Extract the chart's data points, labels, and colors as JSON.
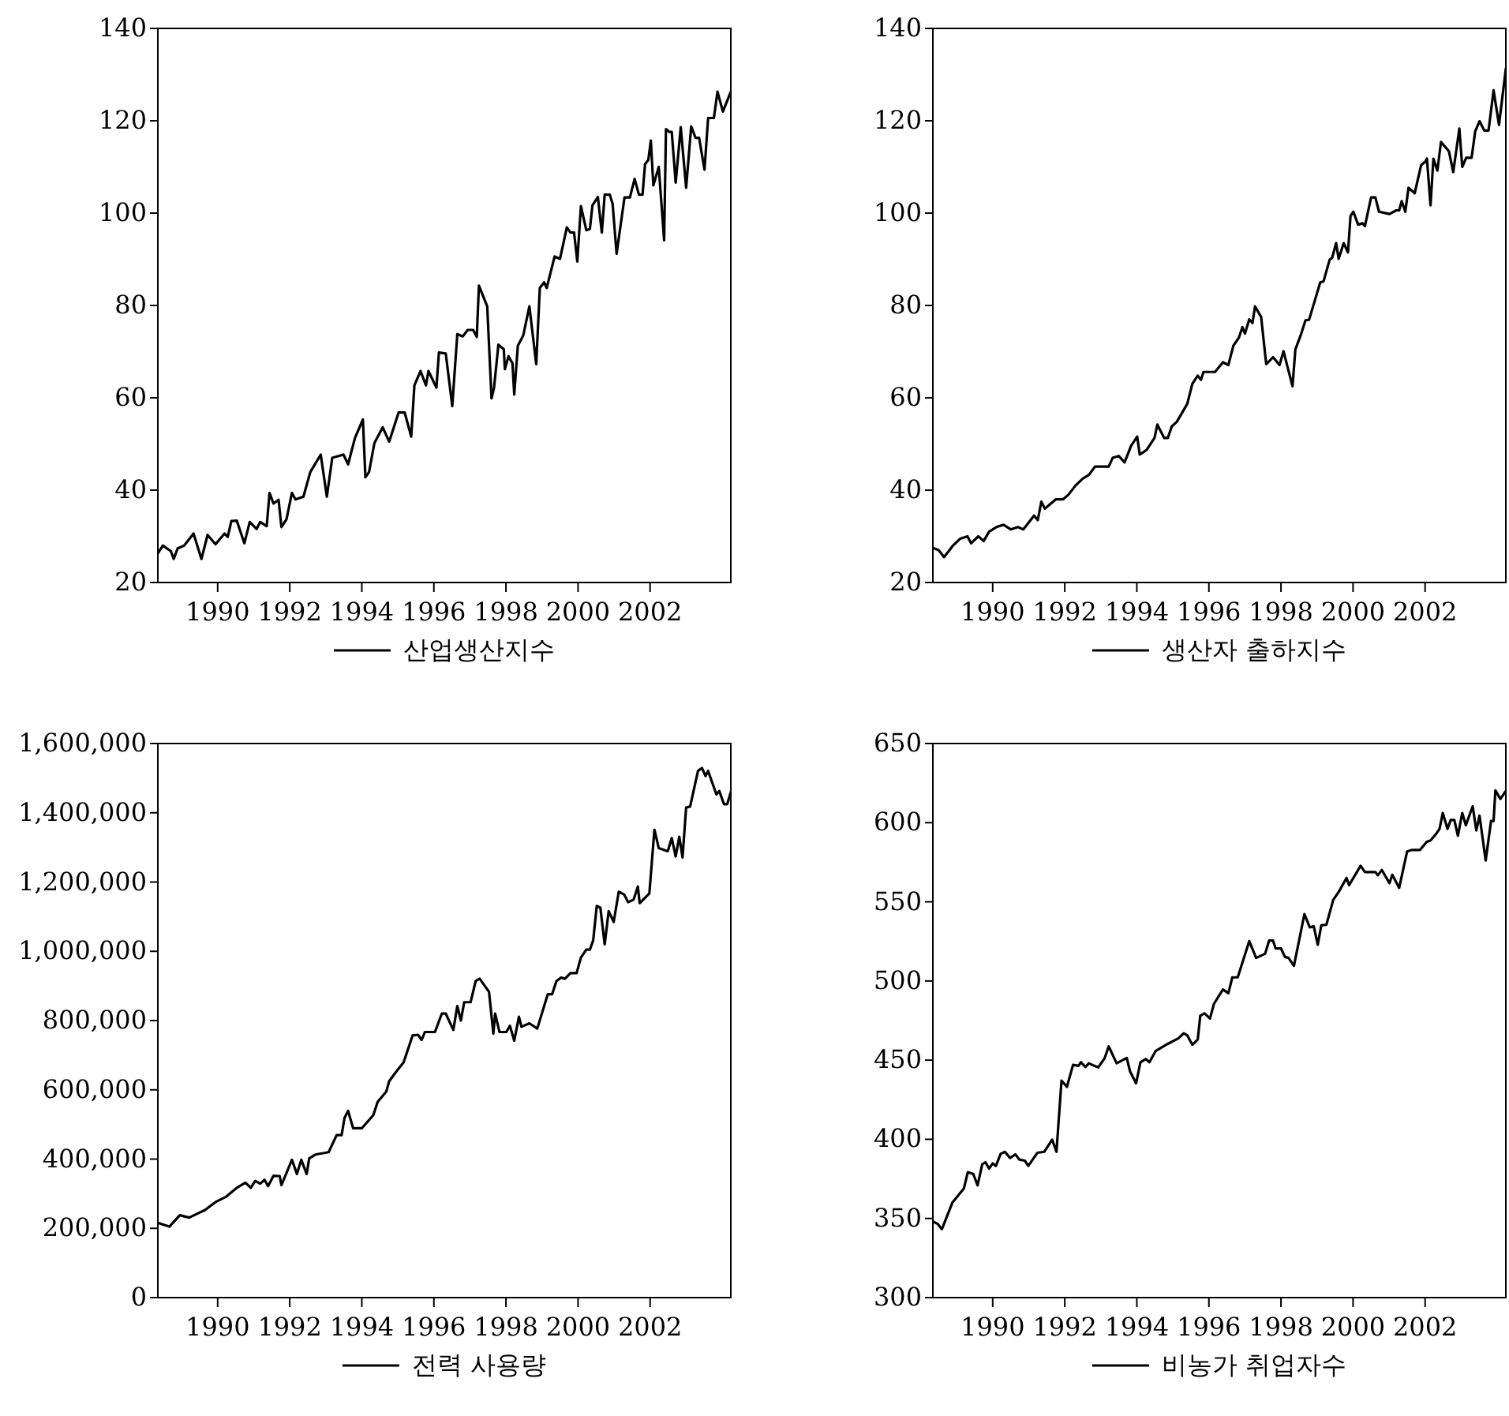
{
  "chart_data": [
    {
      "type": "line",
      "xlim": [
        1988.34,
        2004.24
      ],
      "xticks": [
        1990,
        1992,
        1994,
        1996,
        1998,
        2000,
        2002
      ],
      "ylim": [
        20,
        140
      ],
      "yticks": [
        20,
        40,
        60,
        80,
        100,
        120,
        140
      ],
      "legend": "bottom",
      "series": [
        {
          "name": "산업생산지수",
          "color": "#000000",
          "x": [
            1988.34,
            1988.48,
            1988.7,
            1988.78,
            1988.89,
            1989.07,
            1989.33,
            1989.55,
            1989.72,
            1989.94,
            1990.19,
            1990.28,
            1990.38,
            1990.53,
            1990.74,
            1990.89,
            1991.08,
            1991.18,
            1991.36,
            1991.44,
            1991.55,
            1991.69,
            1991.77,
            1991.91,
            1992.06,
            1992.16,
            1992.38,
            1992.57,
            1992.86,
            1993.03,
            1993.18,
            1993.49,
            1993.62,
            1993.81,
            1994.03,
            1994.1,
            1994.2,
            1994.35,
            1994.58,
            1994.76,
            1995.02,
            1995.19,
            1995.37,
            1995.46,
            1995.63,
            1995.78,
            1995.85,
            1996.07,
            1996.14,
            1996.33,
            1996.51,
            1996.65,
            1996.8,
            1996.94,
            1997.09,
            1997.19,
            1997.25,
            1997.48,
            1997.6,
            1997.67,
            1997.79,
            1997.94,
            1997.97,
            1998.07,
            1998.18,
            1998.23,
            1998.33,
            1998.48,
            1998.65,
            1998.84,
            1998.94,
            1999.06,
            1999.13,
            1999.35,
            1999.5,
            1999.69,
            1999.79,
            1999.89,
            1999.98,
            2000.08,
            2000.23,
            2000.33,
            2000.4,
            2000.55,
            2000.66,
            2000.74,
            2000.88,
            2000.96,
            2001.07,
            2001.29,
            2001.44,
            2001.57,
            2001.69,
            2001.79,
            2001.86,
            2001.95,
            2002.02,
            2002.09,
            2002.24,
            2002.39,
            2002.44,
            2002.53,
            2002.6,
            2002.71,
            2002.85,
            2003.0,
            2003.14,
            2003.26,
            2003.36,
            2003.51,
            2003.61,
            2003.77,
            2003.87,
            2004.02,
            2004.24
          ],
          "values": [
            26.3,
            28.0,
            26.8,
            25.1,
            27.4,
            28.0,
            30.6,
            25.1,
            30.3,
            28.3,
            30.6,
            29.9,
            33.3,
            33.4,
            28.5,
            33.1,
            31.6,
            33.1,
            32.2,
            39.4,
            37.1,
            37.9,
            32.0,
            33.7,
            39.4,
            38.0,
            38.6,
            43.9,
            47.7,
            38.6,
            47.0,
            47.7,
            45.6,
            51.3,
            55.3,
            42.8,
            43.9,
            50.2,
            53.6,
            50.5,
            56.8,
            56.8,
            51.6,
            62.7,
            65.8,
            62.7,
            65.8,
            62.2,
            69.8,
            69.6,
            58.2,
            73.8,
            73.3,
            74.7,
            74.7,
            73.2,
            84.3,
            79.8,
            59.9,
            62.2,
            71.5,
            70.5,
            66.2,
            69.0,
            67.5,
            60.7,
            71.3,
            73.5,
            79.8,
            67.3,
            83.8,
            85.0,
            83.8,
            90.6,
            90.1,
            96.9,
            95.8,
            95.8,
            89.5,
            101.5,
            96.3,
            96.6,
            101.7,
            103.5,
            95.8,
            104.0,
            104.0,
            102.0,
            91.2,
            103.4,
            103.4,
            107.4,
            104.0,
            104.0,
            110.6,
            111.5,
            115.7,
            106.0,
            110.0,
            94.1,
            118.2,
            117.6,
            117.6,
            106.6,
            118.6,
            105.5,
            118.8,
            116.3,
            116.3,
            109.4,
            120.6,
            120.6,
            126.3,
            122.0,
            126.3
          ]
        }
      ]
    },
    {
      "type": "line",
      "xlim": [
        1988.34,
        2004.24
      ],
      "xticks": [
        1990,
        1992,
        1994,
        1996,
        1998,
        2000,
        2002
      ],
      "ylim": [
        20,
        140
      ],
      "yticks": [
        20,
        40,
        60,
        80,
        100,
        120,
        140
      ],
      "legend": "bottom",
      "series": [
        {
          "name": "생산자 출하지수",
          "color": "#000000",
          "x": [
            1988.34,
            1988.5,
            1988.65,
            1988.9,
            1989.1,
            1989.3,
            1989.4,
            1989.6,
            1989.75,
            1989.9,
            1990.1,
            1990.3,
            1990.5,
            1990.7,
            1990.85,
            1991.0,
            1991.15,
            1991.25,
            1991.35,
            1991.45,
            1991.6,
            1991.75,
            1991.95,
            1992.1,
            1992.3,
            1992.5,
            1992.67,
            1992.84,
            1993.22,
            1993.33,
            1993.5,
            1993.66,
            1993.84,
            1994.01,
            1994.08,
            1994.27,
            1994.49,
            1994.57,
            1994.76,
            1994.86,
            1994.97,
            1995.11,
            1995.4,
            1995.54,
            1995.69,
            1995.78,
            1995.85,
            1996.17,
            1996.39,
            1996.54,
            1996.68,
            1996.83,
            1996.93,
            1997.0,
            1997.12,
            1997.21,
            1997.28,
            1997.45,
            1997.59,
            1997.78,
            1997.96,
            1998.07,
            1998.32,
            1998.4,
            1998.55,
            1998.68,
            1998.78,
            1999.09,
            1999.18,
            1999.35,
            1999.42,
            1999.53,
            1999.6,
            1999.74,
            1999.86,
            1999.93,
            2000.01,
            2000.14,
            2000.26,
            2000.33,
            2000.5,
            2000.62,
            2000.72,
            2001.01,
            2001.2,
            2001.28,
            2001.35,
            2001.45,
            2001.54,
            2001.71,
            2001.89,
            2002.01,
            2002.05,
            2002.15,
            2002.23,
            2002.34,
            2002.44,
            2002.66,
            2002.78,
            2002.95,
            2003.03,
            2003.14,
            2003.29,
            2003.39,
            2003.51,
            2003.64,
            2003.76,
            2003.9,
            2004.05,
            2004.24
          ],
          "values": [
            27.5,
            27,
            25.5,
            28,
            29.5,
            30,
            28.5,
            30,
            29,
            31,
            32,
            32.5,
            31.5,
            32,
            31.5,
            33,
            34.5,
            33.5,
            37.5,
            36,
            37,
            38,
            38,
            39,
            41,
            42.5,
            43.3,
            45.1,
            45.1,
            47.0,
            47.4,
            46.0,
            49.6,
            51.6,
            47.7,
            48.7,
            51.3,
            54.2,
            51.3,
            51.3,
            53.8,
            54.8,
            58.7,
            63.0,
            64.8,
            63.9,
            65.6,
            65.6,
            67.7,
            67.1,
            71.3,
            73.0,
            75.3,
            73.9,
            77.0,
            76.2,
            79.8,
            77.5,
            67.3,
            68.8,
            67.1,
            70.1,
            62.5,
            70.5,
            73.6,
            76.8,
            76.9,
            85.0,
            85.2,
            89.9,
            90.3,
            93.5,
            90.1,
            93.5,
            91.5,
            99.4,
            100.3,
            97.5,
            97.8,
            97.2,
            103.4,
            103.4,
            100.3,
            99.8,
            100.6,
            100.6,
            102.6,
            100.3,
            105.5,
            104.3,
            110.4,
            111.2,
            111.8,
            101.7,
            111.8,
            109.2,
            115.4,
            113.4,
            108.9,
            118.3,
            110.0,
            112.0,
            112.0,
            117.7,
            119.9,
            117.9,
            117.9,
            126.6,
            119.1,
            131.3
          ]
        }
      ]
    },
    {
      "type": "line",
      "xlim": [
        1988.34,
        2004.24
      ],
      "xticks": [
        1990,
        1992,
        1994,
        1996,
        1998,
        2000,
        2002
      ],
      "ylim": [
        0,
        1600000
      ],
      "yticks": [
        0,
        {
          "value": 200000,
          "label": "200,000"
        },
        {
          "value": 400000,
          "label": "400,000"
        },
        {
          "value": 600000,
          "label": "600,000"
        },
        {
          "value": 800000,
          "label": "800,000"
        },
        {
          "value": 1000000,
          "label": "1,000,000"
        },
        {
          "value": 1200000,
          "label": "1,200,000"
        },
        {
          "value": 1400000,
          "label": "1,400,000"
        },
        {
          "value": 1600000,
          "label": "1,600,000"
        }
      ],
      "legend": "bottom",
      "series": [
        {
          "name": "전력 사용량",
          "color": "#000000",
          "x": [
            1988.34,
            1988.66,
            1988.95,
            1989.21,
            1989.65,
            1989.94,
            1990.23,
            1990.53,
            1990.77,
            1990.92,
            1991.04,
            1991.18,
            1991.3,
            1991.4,
            1991.55,
            1991.72,
            1991.77,
            1991.91,
            1992.06,
            1992.2,
            1992.32,
            1992.47,
            1992.54,
            1992.71,
            1993.08,
            1993.3,
            1993.44,
            1993.52,
            1993.62,
            1993.76,
            1994.0,
            1994.32,
            1994.44,
            1994.68,
            1994.76,
            1994.98,
            1995.16,
            1995.41,
            1995.56,
            1995.66,
            1995.75,
            1996.03,
            1996.22,
            1996.33,
            1996.54,
            1996.65,
            1996.75,
            1996.84,
            1997.02,
            1997.16,
            1997.27,
            1997.53,
            1997.65,
            1997.7,
            1997.82,
            1998.01,
            1998.11,
            1998.23,
            1998.36,
            1998.43,
            1998.65,
            1998.87,
            1999.16,
            1999.28,
            1999.4,
            1999.53,
            1999.64,
            1999.79,
            1999.96,
            2000.08,
            2000.23,
            2000.33,
            2000.42,
            2000.52,
            2000.62,
            2000.74,
            2000.85,
            2000.99,
            2001.13,
            2001.28,
            2001.39,
            2001.54,
            2001.66,
            2001.71,
            2001.98,
            2002.12,
            2002.24,
            2002.49,
            2002.6,
            2002.71,
            2002.81,
            2002.9,
            2003.0,
            2003.11,
            2003.33,
            2003.44,
            2003.54,
            2003.61,
            2003.84,
            2003.92,
            2004.05,
            2004.14,
            2004.24
          ],
          "values": [
            216000,
            205000,
            238000,
            231000,
            253000,
            276000,
            291000,
            317000,
            332000,
            317000,
            337000,
            329000,
            340000,
            322000,
            352000,
            351000,
            325000,
            360000,
            398000,
            357000,
            398000,
            357000,
            402000,
            413000,
            420000,
            469000,
            469000,
            519000,
            539000,
            489000,
            489000,
            527000,
            565000,
            595000,
            625000,
            656000,
            679000,
            757000,
            759000,
            744000,
            767000,
            767000,
            820000,
            820000,
            773000,
            842000,
            800000,
            853000,
            853000,
            914000,
            921000,
            883000,
            762000,
            820000,
            767000,
            767000,
            785000,
            742000,
            811000,
            782000,
            792000,
            777000,
            876000,
            876000,
            914000,
            924000,
            921000,
            937000,
            937000,
            982000,
            1005000,
            1005000,
            1031000,
            1131000,
            1126000,
            1020000,
            1116000,
            1085000,
            1172000,
            1164000,
            1142000,
            1149000,
            1187000,
            1139000,
            1167000,
            1351000,
            1298000,
            1289000,
            1327000,
            1274000,
            1331000,
            1271000,
            1415000,
            1418000,
            1521000,
            1529000,
            1506000,
            1521000,
            1453000,
            1463000,
            1425000,
            1425000,
            1460000
          ]
        }
      ]
    },
    {
      "type": "line",
      "xlim": [
        1988.34,
        2004.24
      ],
      "xticks": [
        1990,
        1992,
        1994,
        1996,
        1998,
        2000,
        2002
      ],
      "ylim": [
        300,
        650
      ],
      "yticks": [
        300,
        350,
        400,
        450,
        500,
        550,
        600,
        650
      ],
      "legend": "bottom",
      "series": [
        {
          "name": "비농가 취업자수",
          "color": "#000000",
          "x": [
            1988.34,
            1988.47,
            1988.59,
            1988.88,
            1989.2,
            1989.31,
            1989.46,
            1989.58,
            1989.71,
            1989.8,
            1989.9,
            1990.0,
            1990.09,
            1990.22,
            1990.34,
            1990.48,
            1990.63,
            1990.74,
            1990.89,
            1990.99,
            1991.14,
            1991.24,
            1991.43,
            1991.65,
            1991.77,
            1991.91,
            1992.06,
            1992.23,
            1992.38,
            1992.45,
            1992.57,
            1992.67,
            1992.82,
            1992.93,
            1993.11,
            1993.22,
            1993.44,
            1993.72,
            1993.81,
            1993.98,
            1994.1,
            1994.25,
            1994.35,
            1994.52,
            1994.86,
            1995.15,
            1995.3,
            1995.4,
            1995.54,
            1995.69,
            1995.76,
            1995.88,
            1996.03,
            1996.14,
            1996.39,
            1996.54,
            1996.65,
            1996.8,
            1997.12,
            1997.31,
            1997.56,
            1997.67,
            1997.78,
            1997.85,
            1998.0,
            1998.11,
            1998.21,
            1998.36,
            1998.65,
            1998.8,
            1998.91,
            1999.02,
            1999.12,
            1999.26,
            1999.45,
            1999.6,
            1999.82,
            1999.89,
            2000.21,
            2000.33,
            2000.62,
            2000.69,
            2000.8,
            2001.01,
            2001.09,
            2001.28,
            2001.5,
            2001.64,
            2001.86,
            2002.04,
            2002.15,
            2002.3,
            2002.4,
            2002.49,
            2002.62,
            2002.71,
            2002.81,
            2002.91,
            2003.03,
            2003.13,
            2003.32,
            2003.42,
            2003.51,
            2003.61,
            2003.68,
            2003.83,
            2003.9,
            2003.95,
            2004.09,
            2004.24
          ],
          "values": [
            348.2,
            346.6,
            343.2,
            359.9,
            368.9,
            379.2,
            378.2,
            370.9,
            384.2,
            385.5,
            381.5,
            384.8,
            383.2,
            390.8,
            392.1,
            388.2,
            390.5,
            387.2,
            386.5,
            383.2,
            388.2,
            391.5,
            392.1,
            399.8,
            392.1,
            437.1,
            433.1,
            447.0,
            446.4,
            448.7,
            445.7,
            448.0,
            446.4,
            445.4,
            451.4,
            458.7,
            448.0,
            451.4,
            443.0,
            435.4,
            448.7,
            450.7,
            448.7,
            455.7,
            460.3,
            463.7,
            467.0,
            465.7,
            459.7,
            463.0,
            478.0,
            479.6,
            476.3,
            485.6,
            494.6,
            492.3,
            502.3,
            502.3,
            525.2,
            514.6,
            517.2,
            525.5,
            525.5,
            520.6,
            520.6,
            515.2,
            514.6,
            509.6,
            542.2,
            533.9,
            534.5,
            522.9,
            535.2,
            535.5,
            551.2,
            556.2,
            565.1,
            560.5,
            572.8,
            568.8,
            568.8,
            566.8,
            570.1,
            561.8,
            567.1,
            558.8,
            581.8,
            582.8,
            582.8,
            587.8,
            588.8,
            592.7,
            596.1,
            606.1,
            596.1,
            601.7,
            601.7,
            591.7,
            606.1,
            598.4,
            610.4,
            595.1,
            604.4,
            587.8,
            576.1,
            601.1,
            601.1,
            620.4,
            615.0,
            620.0
          ]
        }
      ]
    }
  ]
}
